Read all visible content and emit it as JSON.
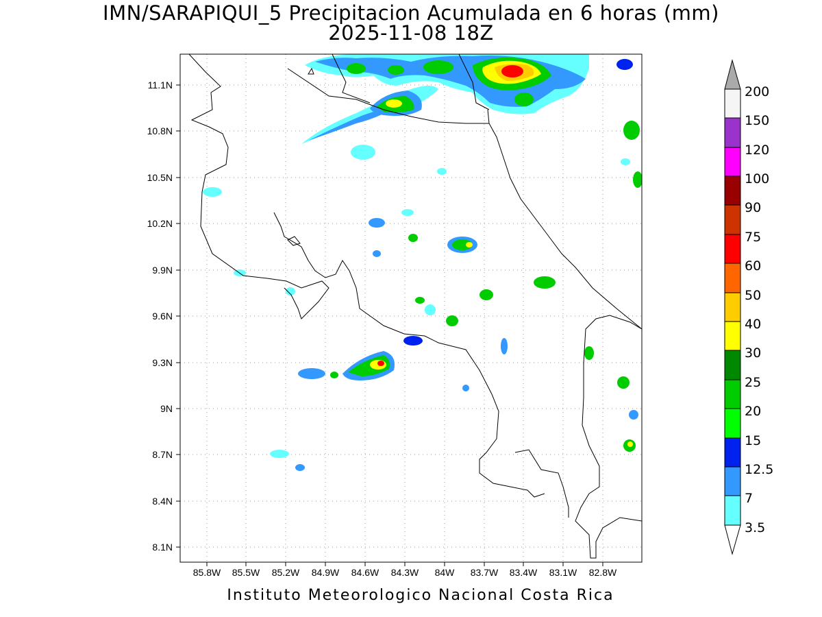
{
  "title": {
    "line1": "IMN/SARAPIQUI_5 Precipitacion Acumulada en 6 horas (mm)",
    "line2": "2025-11-08 18Z"
  },
  "footer": "Instituto Meteorologico Nacional Costa Rica",
  "map": {
    "lon_range": [
      -86.0,
      -82.5
    ],
    "lat_range": [
      8.0,
      11.3
    ],
    "grid": true,
    "lat_ticks": [
      "11.1N",
      "10.8N",
      "10.5N",
      "10.2N",
      "9.9N",
      "9.6N",
      "9.3N",
      "9N",
      "8.7N",
      "8.4N",
      "8.1N"
    ],
    "lon_ticks": [
      "85.8W",
      "85.5W",
      "85.2W",
      "84.9W",
      "84.6W",
      "84.3W",
      "84W",
      "83.7W",
      "83.4W",
      "83.1W",
      "82.8W"
    ]
  },
  "colorbar": {
    "levels": [
      "3.5",
      "7",
      "12.5",
      "15",
      "20",
      "25",
      "30",
      "40",
      "50",
      "60",
      "75",
      "90",
      "100",
      "120",
      "150",
      "200"
    ],
    "colors": [
      "#66ffff",
      "#3399ff",
      "#0022ee",
      "#00ff00",
      "#00cc00",
      "#008800",
      "#ffff00",
      "#ffcc00",
      "#ff6600",
      "#ff0000",
      "#cc3300",
      "#990000",
      "#ff00ff",
      "#9933cc",
      "#f5f5f5",
      "#aaaaaa"
    ]
  }
}
